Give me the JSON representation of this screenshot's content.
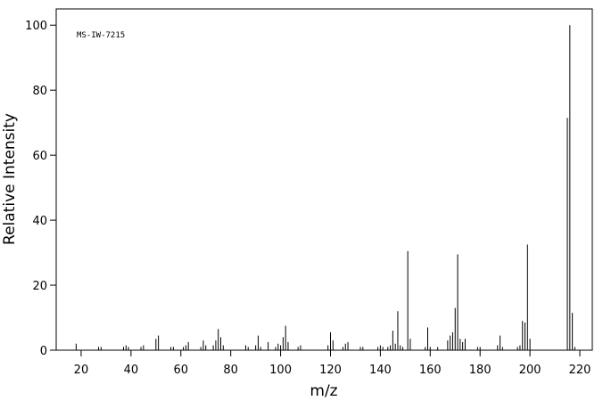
{
  "chart_data": {
    "type": "stem",
    "annotation": "MS-IW-7215",
    "x_label": "m/z",
    "y_label": "Relative Intensity",
    "color": "#000000",
    "xlim": [
      10,
      225
    ],
    "ylim": [
      0,
      105
    ],
    "xticks": [
      20,
      40,
      60,
      80,
      100,
      120,
      140,
      160,
      180,
      200,
      220
    ],
    "yticks": [
      0,
      20,
      40,
      60,
      80,
      100
    ],
    "x": [
      18,
      27,
      28,
      37,
      38,
      39,
      44,
      45,
      50,
      51,
      56,
      57,
      61,
      62,
      63,
      68,
      69,
      70,
      73,
      74,
      75,
      76,
      77,
      86,
      87,
      90,
      91,
      92,
      95,
      98,
      99,
      100,
      101,
      102,
      103,
      107,
      108,
      119,
      120,
      121,
      125,
      126,
      127,
      132,
      133,
      139,
      140,
      141,
      143,
      144,
      145,
      146,
      147,
      148,
      149,
      151,
      152,
      158,
      159,
      160,
      163,
      167,
      168,
      169,
      170,
      171,
      172,
      173,
      174,
      179,
      180,
      187,
      188,
      189,
      195,
      196,
      197,
      198,
      199,
      200,
      215,
      216,
      217,
      218
    ],
    "values": [
      2,
      1,
      1,
      1,
      1.5,
      1,
      1,
      1.5,
      3.5,
      4.5,
      1,
      1,
      1,
      1.5,
      2.5,
      1,
      3,
      1.5,
      1.5,
      3,
      6.5,
      4,
      1.5,
      1.5,
      1,
      1.5,
      4.5,
      1,
      2.5,
      1,
      2,
      1.5,
      4,
      7.5,
      2.5,
      1,
      1.5,
      1.5,
      5.5,
      3,
      1,
      2,
      2.5,
      1,
      1,
      1,
      1.5,
      1,
      1,
      1.5,
      6,
      2,
      12,
      1.5,
      1,
      30.5,
      3.5,
      1,
      7,
      1,
      1,
      3,
      4.5,
      5.5,
      13,
      29.5,
      3.5,
      2.5,
      3.5,
      1,
      1,
      1.5,
      4.5,
      1,
      1,
      1.5,
      9,
      8.5,
      32.5,
      3.5,
      71.5,
      100,
      11.5,
      1
    ]
  }
}
